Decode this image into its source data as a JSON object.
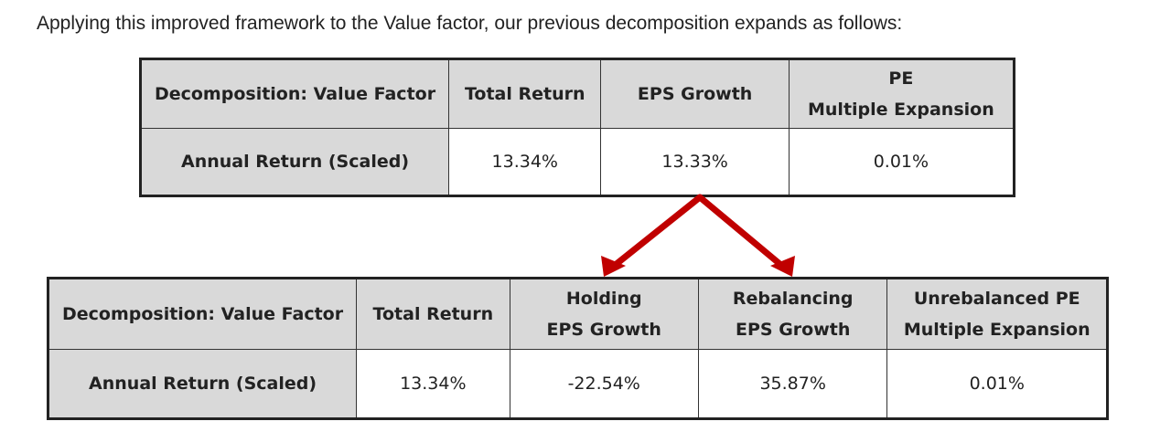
{
  "intro_text": "Applying this improved framework to the Value factor, our previous decomposition expands as follows:",
  "table_top": {
    "headers": [
      "Decomposition: Value Factor",
      "Total Return",
      "EPS Growth",
      [
        "PE",
        "Multiple Expansion"
      ]
    ],
    "row_label": "Annual Return (Scaled)",
    "values": [
      "13.34%",
      "13.33%",
      "0.01%"
    ]
  },
  "table_bottom": {
    "headers": [
      "Decomposition: Value Factor",
      "Total Return",
      [
        "Holding",
        "EPS Growth"
      ],
      [
        "Rebalancing",
        "EPS Growth"
      ],
      [
        "Unrebalanced PE",
        "Multiple Expansion"
      ]
    ],
    "row_label": "Annual Return (Scaled)",
    "values": [
      "13.34%",
      "-22.54%",
      "35.87%",
      "0.01%"
    ]
  },
  "colors": {
    "arrow": "#c00000",
    "header_bg": "#d9d9d9",
    "border": "#222222"
  }
}
